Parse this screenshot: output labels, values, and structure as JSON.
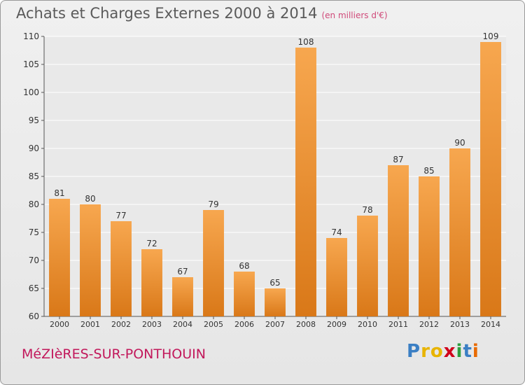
{
  "header": {
    "title": "Achats et Charges Externes 2000 à 2014",
    "unit": "(en milliers d'€)"
  },
  "footer": {
    "commune": "MéZIèRES-SUR-PONTHOUIN",
    "logo_letters": [
      "P",
      "r",
      "o",
      "x",
      "i",
      "t",
      "i"
    ],
    "logo_colors": [
      "#3b7fc4",
      "#e8b400",
      "#e8b400",
      "#d0021b",
      "#2e9e3e",
      "#3b7fc4",
      "#e86a00"
    ]
  },
  "colors": {
    "bar_light": "#f7a74f",
    "bar_dark": "#d97818",
    "grid": "#ffffff",
    "axis_text": "#333333"
  },
  "chart_data": {
    "type": "bar",
    "categories": [
      "2000",
      "2001",
      "2002",
      "2003",
      "2004",
      "2005",
      "2006",
      "2007",
      "2008",
      "2009",
      "2010",
      "2011",
      "2012",
      "2013",
      "2014"
    ],
    "values": [
      81,
      80,
      77,
      72,
      67,
      79,
      68,
      65,
      108,
      74,
      78,
      87,
      85,
      90,
      109
    ],
    "ylim": [
      60,
      110
    ],
    "yticks": [
      60,
      65,
      70,
      75,
      80,
      85,
      90,
      95,
      100,
      105,
      110
    ],
    "grid": true,
    "legend": "none"
  }
}
